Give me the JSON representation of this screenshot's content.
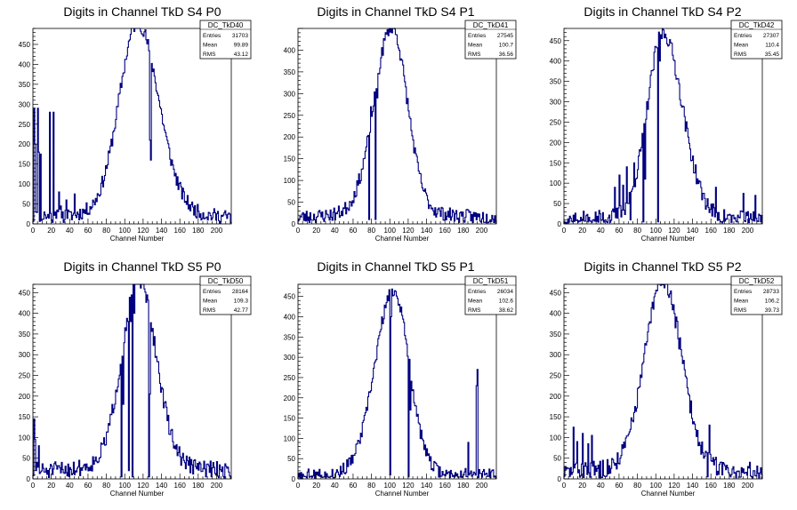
{
  "chart_data": [
    {
      "type": "histogram",
      "title": "Digits in Channel TkD S4 P0",
      "xlabel": "Channel Number",
      "ylabel": "",
      "xlim": [
        0,
        216
      ],
      "ylim": [
        0,
        490
      ],
      "xticks": [
        0,
        20,
        40,
        60,
        80,
        100,
        120,
        140,
        160,
        180,
        200
      ],
      "yticks": [
        0,
        50,
        100,
        150,
        200,
        250,
        300,
        350,
        400,
        450
      ],
      "stats": {
        "name": "DC_TkD40",
        "Entries": "31703",
        "Mean": "99.89",
        "RMS": "43.12"
      },
      "color": "#000080",
      "peak": {
        "x": 114,
        "y": 465,
        "sl": 20,
        "sr": 23
      },
      "base": 40,
      "spikes": [
        [
          1,
          290
        ],
        [
          2,
          200
        ],
        [
          3,
          30
        ],
        [
          5,
          290
        ],
        [
          6,
          180
        ],
        [
          8,
          175
        ],
        [
          12,
          30
        ],
        [
          18,
          280
        ],
        [
          20,
          10
        ],
        [
          22,
          280
        ],
        [
          24,
          30
        ],
        [
          28,
          80
        ],
        [
          30,
          45
        ],
        [
          36,
          60
        ],
        [
          40,
          30
        ],
        [
          45,
          75
        ],
        [
          127,
          210
        ],
        [
          128,
          160
        ]
      ],
      "noise": 18,
      "seed": 11
    },
    {
      "type": "histogram",
      "title": "Digits in Channel TkD S4 P1",
      "xlabel": "Channel Number",
      "ylabel": "",
      "xlim": [
        0,
        216
      ],
      "ylim": [
        0,
        450
      ],
      "xticks": [
        0,
        20,
        40,
        60,
        80,
        100,
        120,
        140,
        160,
        180,
        200
      ],
      "yticks": [
        0,
        50,
        100,
        150,
        200,
        250,
        300,
        350,
        400
      ],
      "stats": {
        "name": "DC_TkD41",
        "Entries": "27545",
        "Mean": "100.7",
        "RMS": "36.56"
      },
      "color": "#000080",
      "peak": {
        "x": 102,
        "y": 420,
        "sl": 19,
        "sr": 17
      },
      "base": 35,
      "spikes": [
        [
          77,
          10
        ],
        [
          79,
          270
        ],
        [
          84,
          10
        ],
        [
          86,
          290
        ]
      ],
      "noise": 16,
      "seed": 23
    },
    {
      "type": "histogram",
      "title": "Digits in Channel TkD S4 P2",
      "xlabel": "Channel Number",
      "ylabel": "",
      "xlim": [
        0,
        216
      ],
      "ylim": [
        0,
        480
      ],
      "xticks": [
        0,
        20,
        40,
        60,
        80,
        100,
        120,
        140,
        160,
        180,
        200
      ],
      "yticks": [
        0,
        50,
        100,
        150,
        200,
        250,
        300,
        350,
        400,
        450
      ],
      "stats": {
        "name": "DC_TkD42",
        "Entries": "27307",
        "Mean": "110.4",
        "RMS": "35.45"
      },
      "color": "#000080",
      "peak": {
        "x": 108,
        "y": 445,
        "sl": 17,
        "sr": 21
      },
      "base": 25,
      "spikes": [
        [
          55,
          90
        ],
        [
          60,
          120
        ],
        [
          64,
          95
        ],
        [
          68,
          140
        ],
        [
          72,
          10
        ],
        [
          76,
          150
        ],
        [
          86,
          5
        ],
        [
          88,
          110
        ],
        [
          102,
          5
        ],
        [
          104,
          400
        ],
        [
          165,
          90
        ],
        [
          170,
          5
        ],
        [
          195,
          75
        ],
        [
          206,
          30
        ],
        [
          208,
          70
        ]
      ],
      "noise": 20,
      "seed": 37
    },
    {
      "type": "histogram",
      "title": "Digits in Channel TkD S5 P0",
      "xlabel": "Channel Number",
      "ylabel": "",
      "xlim": [
        0,
        216
      ],
      "ylim": [
        0,
        470
      ],
      "xticks": [
        0,
        20,
        40,
        60,
        80,
        100,
        120,
        140,
        160,
        180,
        200
      ],
      "yticks": [
        0,
        50,
        100,
        150,
        200,
        250,
        300,
        350,
        400,
        450
      ],
      "stats": {
        "name": "DC_TkD50",
        "Entries": "28164",
        "Mean": "109.3",
        "RMS": "42.77"
      },
      "color": "#000080",
      "peak": {
        "x": 115,
        "y": 440,
        "sl": 18,
        "sr": 19
      },
      "base": 45,
      "spikes": [
        [
          1,
          145
        ],
        [
          2,
          95
        ],
        [
          4,
          40
        ],
        [
          6,
          80
        ],
        [
          96,
          5
        ],
        [
          98,
          180
        ],
        [
          104,
          20
        ],
        [
          106,
          380
        ],
        [
          108,
          5
        ],
        [
          110,
          400
        ],
        [
          126,
          5
        ],
        [
          127,
          205
        ]
      ],
      "noise": 20,
      "seed": 51
    },
    {
      "type": "histogram",
      "title": "Digits in Channel TkD S5 P1",
      "xlabel": "Channel Number",
      "ylabel": "",
      "xlim": [
        0,
        216
      ],
      "ylim": [
        0,
        480
      ],
      "xticks": [
        0,
        20,
        40,
        60,
        80,
        100,
        120,
        140,
        160,
        180,
        200
      ],
      "yticks": [
        0,
        50,
        100,
        150,
        200,
        250,
        300,
        350,
        400,
        450
      ],
      "stats": {
        "name": "DC_TkD51",
        "Entries": "26034",
        "Mean": "102.6",
        "RMS": "38.62"
      },
      "color": "#000080",
      "peak": {
        "x": 104,
        "y": 445,
        "sl": 20,
        "sr": 17
      },
      "base": 20,
      "spikes": [
        [
          100,
          10
        ],
        [
          101,
          400
        ],
        [
          120,
          5
        ],
        [
          122,
          170
        ],
        [
          180,
          10
        ],
        [
          185,
          90
        ],
        [
          190,
          10
        ],
        [
          194,
          230
        ],
        [
          195,
          270
        ]
      ],
      "noise": 16,
      "seed": 67
    },
    {
      "type": "histogram",
      "title": "Digits in Channel TkD S5 P2",
      "xlabel": "Channel Number",
      "ylabel": "",
      "xlim": [
        0,
        216
      ],
      "ylim": [
        0,
        470
      ],
      "xticks": [
        0,
        20,
        40,
        60,
        80,
        100,
        120,
        140,
        160,
        180,
        200
      ],
      "yticks": [
        0,
        50,
        100,
        150,
        200,
        250,
        300,
        350,
        400,
        450
      ],
      "stats": {
        "name": "DC_TkD52",
        "Entries": "28733",
        "Mean": "106.2",
        "RMS": "39.73"
      },
      "color": "#000080",
      "peak": {
        "x": 108,
        "y": 440,
        "sl": 20,
        "sr": 20
      },
      "base": 40,
      "spikes": [
        [
          10,
          125
        ],
        [
          14,
          90
        ],
        [
          20,
          110
        ],
        [
          26,
          85
        ],
        [
          30,
          105
        ],
        [
          42,
          45
        ],
        [
          156,
          5
        ],
        [
          158,
          130
        ],
        [
          170,
          40
        ],
        [
          180,
          10
        ],
        [
          200,
          30
        ]
      ],
      "noise": 22,
      "seed": 83
    }
  ]
}
